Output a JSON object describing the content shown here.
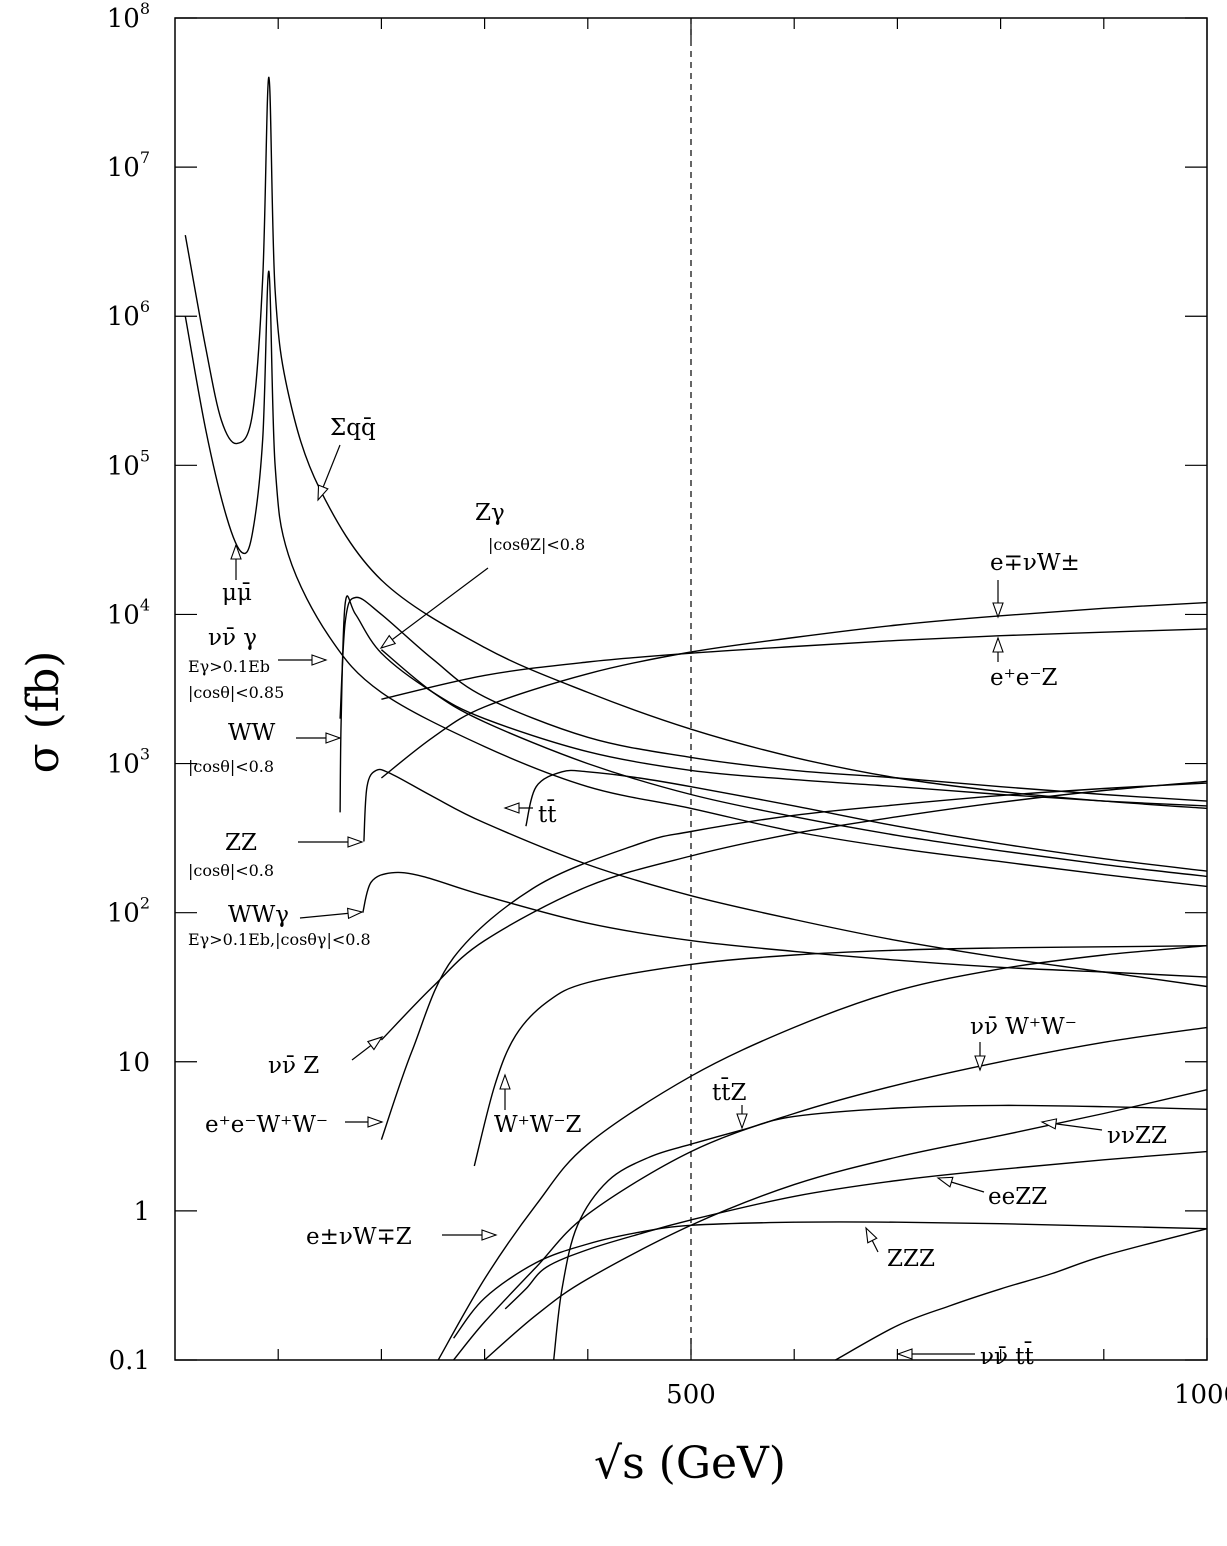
{
  "chart_data": {
    "type": "line",
    "xlabel": "√s  (GeV)",
    "ylabel": "σ (fb)",
    "xscale": "linear",
    "yscale": "log",
    "xlim": [
      0,
      1000
    ],
    "ylim": [
      0.1,
      100000000
    ],
    "x_tick_labels": [
      "500",
      "1000"
    ],
    "y_tick_labels": [
      {
        "base": "0.1",
        "exp": ""
      },
      {
        "base": "1",
        "exp": ""
      },
      {
        "base": "10",
        "exp": ""
      },
      {
        "base": "10",
        "exp": "2"
      },
      {
        "base": "10",
        "exp": "3"
      },
      {
        "base": "10",
        "exp": "4"
      },
      {
        "base": "10",
        "exp": "5"
      },
      {
        "base": "10",
        "exp": "6"
      },
      {
        "base": "10",
        "exp": "7"
      },
      {
        "base": "10",
        "exp": "8"
      }
    ],
    "reference_line": {
      "x": 500,
      "style": "dashed"
    },
    "series": [
      {
        "id": "sqq",
        "points": [
          [
            10,
            3500000
          ],
          [
            30,
            600000
          ],
          [
            45,
            200000
          ],
          [
            60,
            140000
          ],
          [
            75,
            220000
          ],
          [
            85,
            1800000
          ],
          [
            91,
            40000000
          ],
          [
            97,
            1500000
          ],
          [
            110,
            300000
          ],
          [
            140,
            70000
          ],
          [
            200,
            17000
          ],
          [
            300,
            6000
          ],
          [
            400,
            3000
          ],
          [
            500,
            1700
          ],
          [
            600,
            1100
          ],
          [
            700,
            800
          ],
          [
            800,
            650
          ],
          [
            900,
            560
          ],
          [
            1000,
            500
          ]
        ]
      },
      {
        "id": "mumu",
        "points": [
          [
            10,
            1000000
          ],
          [
            30,
            170000
          ],
          [
            50,
            45000
          ],
          [
            65,
            26000
          ],
          [
            75,
            35000
          ],
          [
            85,
            150000
          ],
          [
            91,
            2000000
          ],
          [
            97,
            100000
          ],
          [
            110,
            25000
          ],
          [
            150,
            7000
          ],
          [
            200,
            3000
          ],
          [
            300,
            1300
          ],
          [
            400,
            700
          ],
          [
            500,
            500
          ],
          [
            600,
            350
          ],
          [
            700,
            270
          ],
          [
            800,
            220
          ],
          [
            900,
            180
          ],
          [
            1000,
            150
          ]
        ]
      },
      {
        "id": "nnbar_gamma",
        "points": [
          [
            160,
            2000
          ],
          [
            165,
            9000
          ],
          [
            175,
            13000
          ],
          [
            200,
            10000
          ],
          [
            250,
            5000
          ],
          [
            300,
            2800
          ],
          [
            400,
            1500
          ],
          [
            500,
            1100
          ],
          [
            600,
            900
          ],
          [
            700,
            800
          ],
          [
            800,
            700
          ],
          [
            900,
            620
          ],
          [
            1000,
            560
          ]
        ]
      },
      {
        "id": "zgamma",
        "points": [
          [
            200,
            5800
          ],
          [
            250,
            3000
          ],
          [
            300,
            1900
          ],
          [
            400,
            1000
          ],
          [
            500,
            620
          ],
          [
            600,
            440
          ],
          [
            700,
            330
          ],
          [
            800,
            260
          ],
          [
            900,
            210
          ],
          [
            1000,
            175
          ]
        ]
      },
      {
        "id": "ww",
        "points": [
          [
            160,
            470
          ],
          [
            161,
            2000
          ],
          [
            165,
            12000
          ],
          [
            175,
            10000
          ],
          [
            200,
            5500
          ],
          [
            250,
            3000
          ],
          [
            300,
            2000
          ],
          [
            400,
            1200
          ],
          [
            500,
            900
          ],
          [
            600,
            780
          ],
          [
            700,
            700
          ],
          [
            800,
            620
          ],
          [
            900,
            560
          ],
          [
            1000,
            520
          ]
        ]
      },
      {
        "id": "zz",
        "points": [
          [
            183,
            300
          ],
          [
            186,
            700
          ],
          [
            195,
            900
          ],
          [
            210,
            850
          ],
          [
            250,
            600
          ],
          [
            300,
            400
          ],
          [
            400,
            210
          ],
          [
            500,
            130
          ],
          [
            600,
            90
          ],
          [
            700,
            65
          ],
          [
            800,
            50
          ],
          [
            900,
            40
          ],
          [
            1000,
            32
          ]
        ]
      },
      {
        "id": "wwgamma",
        "points": [
          [
            182,
            100
          ],
          [
            190,
            160
          ],
          [
            210,
            185
          ],
          [
            240,
            175
          ],
          [
            300,
            130
          ],
          [
            400,
            85
          ],
          [
            500,
            65
          ],
          [
            600,
            55
          ],
          [
            700,
            48
          ],
          [
            800,
            43
          ],
          [
            900,
            40
          ],
          [
            1000,
            37
          ]
        ]
      },
      {
        "id": "tt",
        "points": [
          [
            340,
            380
          ],
          [
            350,
            700
          ],
          [
            375,
            880
          ],
          [
            400,
            880
          ],
          [
            450,
            800
          ],
          [
            500,
            700
          ],
          [
            600,
            520
          ],
          [
            700,
            380
          ],
          [
            800,
            290
          ],
          [
            900,
            230
          ],
          [
            1000,
            190
          ]
        ]
      },
      {
        "id": "enuW",
        "points": [
          [
            200,
            800
          ],
          [
            250,
            1500
          ],
          [
            300,
            2400
          ],
          [
            400,
            4000
          ],
          [
            500,
            5600
          ],
          [
            600,
            7000
          ],
          [
            700,
            8500
          ],
          [
            800,
            9800
          ],
          [
            900,
            11000
          ],
          [
            1000,
            12000
          ]
        ]
      },
      {
        "id": "eeZ",
        "points": [
          [
            200,
            2700
          ],
          [
            300,
            3900
          ],
          [
            400,
            4800
          ],
          [
            500,
            5500
          ],
          [
            600,
            6100
          ],
          [
            700,
            6700
          ],
          [
            800,
            7200
          ],
          [
            900,
            7600
          ],
          [
            1000,
            8000
          ]
        ]
      },
      {
        "id": "nnZ",
        "points": [
          [
            200,
            14
          ],
          [
            250,
            32
          ],
          [
            300,
            65
          ],
          [
            400,
            150
          ],
          [
            500,
            240
          ],
          [
            600,
            340
          ],
          [
            700,
            440
          ],
          [
            800,
            550
          ],
          [
            900,
            660
          ],
          [
            1000,
            760
          ]
        ]
      },
      {
        "id": "eeWW",
        "points": [
          [
            200,
            3
          ],
          [
            230,
            12
          ],
          [
            270,
            50
          ],
          [
            350,
            150
          ],
          [
            450,
            290
          ],
          [
            500,
            350
          ],
          [
            600,
            450
          ],
          [
            700,
            530
          ],
          [
            800,
            610
          ],
          [
            900,
            680
          ],
          [
            1000,
            740
          ]
        ]
      },
      {
        "id": "WWZ",
        "points": [
          [
            290,
            2
          ],
          [
            310,
            7
          ],
          [
            330,
            15
          ],
          [
            360,
            25
          ],
          [
            400,
            34
          ],
          [
            500,
            45
          ],
          [
            600,
            52
          ],
          [
            700,
            56
          ],
          [
            800,
            58
          ],
          [
            900,
            59
          ],
          [
            1000,
            60
          ]
        ]
      },
      {
        "id": "nnWW",
        "points": [
          [
            255,
            0.1
          ],
          [
            300,
            0.35
          ],
          [
            350,
            1.1
          ],
          [
            400,
            2.8
          ],
          [
            500,
            8
          ],
          [
            600,
            17
          ],
          [
            700,
            30
          ],
          [
            800,
            42
          ],
          [
            900,
            52
          ],
          [
            1000,
            60
          ]
        ]
      },
      {
        "id": "eWZ",
        "points": [
          [
            270,
            0.1
          ],
          [
            300,
            0.18
          ],
          [
            350,
            0.42
          ],
          [
            400,
            0.95
          ],
          [
            500,
            2.5
          ],
          [
            600,
            4.5
          ],
          [
            700,
            7
          ],
          [
            800,
            10
          ],
          [
            900,
            13.5
          ],
          [
            1000,
            17
          ]
        ]
      },
      {
        "id": "ttZ",
        "points": [
          [
            367,
            0.1
          ],
          [
            375,
            0.3
          ],
          [
            390,
            0.8
          ],
          [
            420,
            1.6
          ],
          [
            460,
            2.3
          ],
          [
            500,
            2.8
          ],
          [
            550,
            3.5
          ],
          [
            600,
            4.3
          ],
          [
            700,
            4.9
          ],
          [
            800,
            5.1
          ],
          [
            900,
            5.0
          ],
          [
            1000,
            4.8
          ]
        ]
      },
      {
        "id": "nnZZ",
        "points": [
          [
            300,
            0.1
          ],
          [
            350,
            0.2
          ],
          [
            400,
            0.35
          ],
          [
            500,
            0.8
          ],
          [
            600,
            1.5
          ],
          [
            700,
            2.3
          ],
          [
            800,
            3.2
          ],
          [
            900,
            4.5
          ],
          [
            1000,
            6.5
          ]
        ]
      },
      {
        "id": "eeZZ",
        "points": [
          [
            320,
            0.22
          ],
          [
            340,
            0.3
          ],
          [
            360,
            0.42
          ],
          [
            400,
            0.55
          ],
          [
            450,
            0.7
          ],
          [
            500,
            0.87
          ],
          [
            600,
            1.25
          ],
          [
            700,
            1.6
          ],
          [
            800,
            1.9
          ],
          [
            900,
            2.2
          ],
          [
            1000,
            2.5
          ]
        ]
      },
      {
        "id": "ZZZ",
        "points": [
          [
            270,
            0.14
          ],
          [
            300,
            0.26
          ],
          [
            350,
            0.45
          ],
          [
            400,
            0.6
          ],
          [
            450,
            0.72
          ],
          [
            500,
            0.8
          ],
          [
            600,
            0.84
          ],
          [
            700,
            0.84
          ],
          [
            800,
            0.82
          ],
          [
            900,
            0.79
          ],
          [
            1000,
            0.76
          ]
        ]
      },
      {
        "id": "nntt",
        "points": [
          [
            640,
            0.1
          ],
          [
            700,
            0.17
          ],
          [
            750,
            0.23
          ],
          [
            800,
            0.3
          ],
          [
            850,
            0.38
          ],
          [
            900,
            0.5
          ],
          [
            1000,
            0.76
          ]
        ]
      }
    ],
    "annotations": [
      {
        "id": "a_sqq",
        "text": "Σqq̄",
        "sub": ""
      },
      {
        "id": "a_mumu",
        "text": "μμ̄",
        "sub": ""
      },
      {
        "id": "a_zgamma",
        "text": "Zγ",
        "sub": "|cosθZ|<0.8"
      },
      {
        "id": "a_nng",
        "text": "νν̄ γ",
        "sub": "Eγ>0.1Eb",
        "sub2": "|cosθ|<0.85"
      },
      {
        "id": "a_ww",
        "text": "WW",
        "sub": "|cosθ|<0.8"
      },
      {
        "id": "a_zz",
        "text": "ZZ",
        "sub": "|cosθ|<0.8"
      },
      {
        "id": "a_wwg",
        "text": "WWγ",
        "sub": "Eγ>0.1Eb,|cosθγ|<0.8"
      },
      {
        "id": "a_tt",
        "text": "tt̄",
        "sub": ""
      },
      {
        "id": "a_enuW",
        "text": "e∓νW±",
        "sub": ""
      },
      {
        "id": "a_eeZ",
        "text": "e⁺e⁻Z",
        "sub": ""
      },
      {
        "id": "a_nnZ",
        "text": "νν̄ Z",
        "sub": ""
      },
      {
        "id": "a_eeWW",
        "text": "e⁺e⁻W⁺W⁻",
        "sub": ""
      },
      {
        "id": "a_WWZ",
        "text": "W⁺W⁻Z",
        "sub": ""
      },
      {
        "id": "a_nnWW",
        "text": "νν̄ W⁺W⁻",
        "sub": ""
      },
      {
        "id": "a_ttZ",
        "text": "tt̄Z",
        "sub": ""
      },
      {
        "id": "a_nnZZ",
        "text": "ννZZ",
        "sub": ""
      },
      {
        "id": "a_eeZZ",
        "text": "eeZZ",
        "sub": ""
      },
      {
        "id": "a_eWZ",
        "text": "e±νW∓Z",
        "sub": ""
      },
      {
        "id": "a_ZZZ",
        "text": "ZZZ",
        "sub": ""
      },
      {
        "id": "a_nntt",
        "text": "νν̄ tt̄",
        "sub": ""
      }
    ]
  }
}
